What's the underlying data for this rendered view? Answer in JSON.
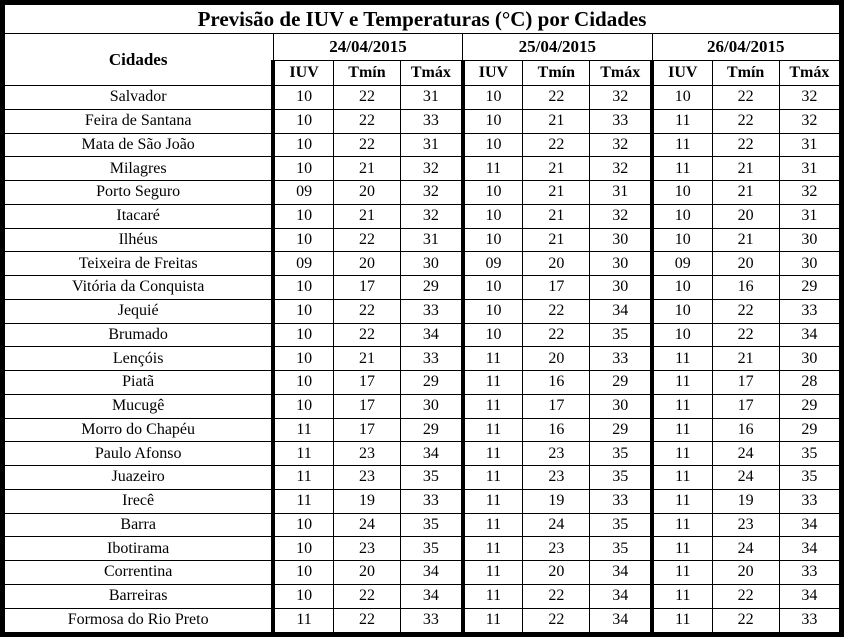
{
  "title": "Previsão de IUV e Temperaturas (°C) por Cidades",
  "table": {
    "city_header": "Cidades",
    "date_groups": [
      "24/04/2015",
      "25/04/2015",
      "26/04/2015"
    ],
    "sub_headers": [
      "IUV",
      "Tmín",
      "Tmáx"
    ],
    "rows": [
      {
        "city": "Salvador",
        "values": [
          "10",
          "22",
          "31",
          "10",
          "22",
          "32",
          "10",
          "22",
          "32"
        ]
      },
      {
        "city": "Feira de Santana",
        "values": [
          "10",
          "22",
          "33",
          "10",
          "21",
          "33",
          "11",
          "22",
          "32"
        ]
      },
      {
        "city": "Mata de São João",
        "values": [
          "10",
          "22",
          "31",
          "10",
          "22",
          "32",
          "11",
          "22",
          "31"
        ]
      },
      {
        "city": "Milagres",
        "values": [
          "10",
          "21",
          "32",
          "11",
          "21",
          "32",
          "11",
          "21",
          "31"
        ]
      },
      {
        "city": "Porto Seguro",
        "values": [
          "09",
          "20",
          "32",
          "10",
          "21",
          "31",
          "10",
          "21",
          "32"
        ]
      },
      {
        "city": "Itacaré",
        "values": [
          "10",
          "21",
          "32",
          "10",
          "21",
          "32",
          "10",
          "20",
          "31"
        ]
      },
      {
        "city": "Ilhéus",
        "values": [
          "10",
          "22",
          "31",
          "10",
          "21",
          "30",
          "10",
          "21",
          "30"
        ]
      },
      {
        "city": "Teixeira de Freitas",
        "values": [
          "09",
          "20",
          "30",
          "09",
          "20",
          "30",
          "09",
          "20",
          "30"
        ]
      },
      {
        "city": "Vitória da Conquista",
        "values": [
          "10",
          "17",
          "29",
          "10",
          "17",
          "30",
          "10",
          "16",
          "29"
        ]
      },
      {
        "city": "Jequié",
        "values": [
          "10",
          "22",
          "33",
          "10",
          "22",
          "34",
          "10",
          "22",
          "33"
        ]
      },
      {
        "city": "Brumado",
        "values": [
          "10",
          "22",
          "34",
          "10",
          "22",
          "35",
          "10",
          "22",
          "34"
        ]
      },
      {
        "city": "Lençóis",
        "values": [
          "10",
          "21",
          "33",
          "11",
          "20",
          "33",
          "11",
          "21",
          "30"
        ]
      },
      {
        "city": "Piatã",
        "values": [
          "10",
          "17",
          "29",
          "11",
          "16",
          "29",
          "11",
          "17",
          "28"
        ]
      },
      {
        "city": "Mucugê",
        "values": [
          "10",
          "17",
          "30",
          "11",
          "17",
          "30",
          "11",
          "17",
          "29"
        ]
      },
      {
        "city": "Morro do Chapéu",
        "values": [
          "11",
          "17",
          "29",
          "11",
          "16",
          "29",
          "11",
          "16",
          "29"
        ]
      },
      {
        "city": "Paulo Afonso",
        "values": [
          "11",
          "23",
          "34",
          "11",
          "23",
          "35",
          "11",
          "24",
          "35"
        ]
      },
      {
        "city": "Juazeiro",
        "values": [
          "11",
          "23",
          "35",
          "11",
          "23",
          "35",
          "11",
          "24",
          "35"
        ]
      },
      {
        "city": "Irecê",
        "values": [
          "11",
          "19",
          "33",
          "11",
          "19",
          "33",
          "11",
          "19",
          "33"
        ]
      },
      {
        "city": "Barra",
        "values": [
          "10",
          "24",
          "35",
          "11",
          "24",
          "35",
          "11",
          "23",
          "34"
        ]
      },
      {
        "city": "Ibotirama",
        "values": [
          "10",
          "23",
          "35",
          "11",
          "23",
          "35",
          "11",
          "24",
          "34"
        ]
      },
      {
        "city": "Correntina",
        "values": [
          "10",
          "20",
          "34",
          "11",
          "20",
          "34",
          "11",
          "20",
          "33"
        ]
      },
      {
        "city": "Barreiras",
        "values": [
          "10",
          "22",
          "34",
          "11",
          "22",
          "34",
          "11",
          "22",
          "34"
        ]
      },
      {
        "city": "Formosa do Rio Preto",
        "values": [
          "11",
          "22",
          "33",
          "11",
          "22",
          "34",
          "11",
          "22",
          "33"
        ]
      }
    ]
  }
}
